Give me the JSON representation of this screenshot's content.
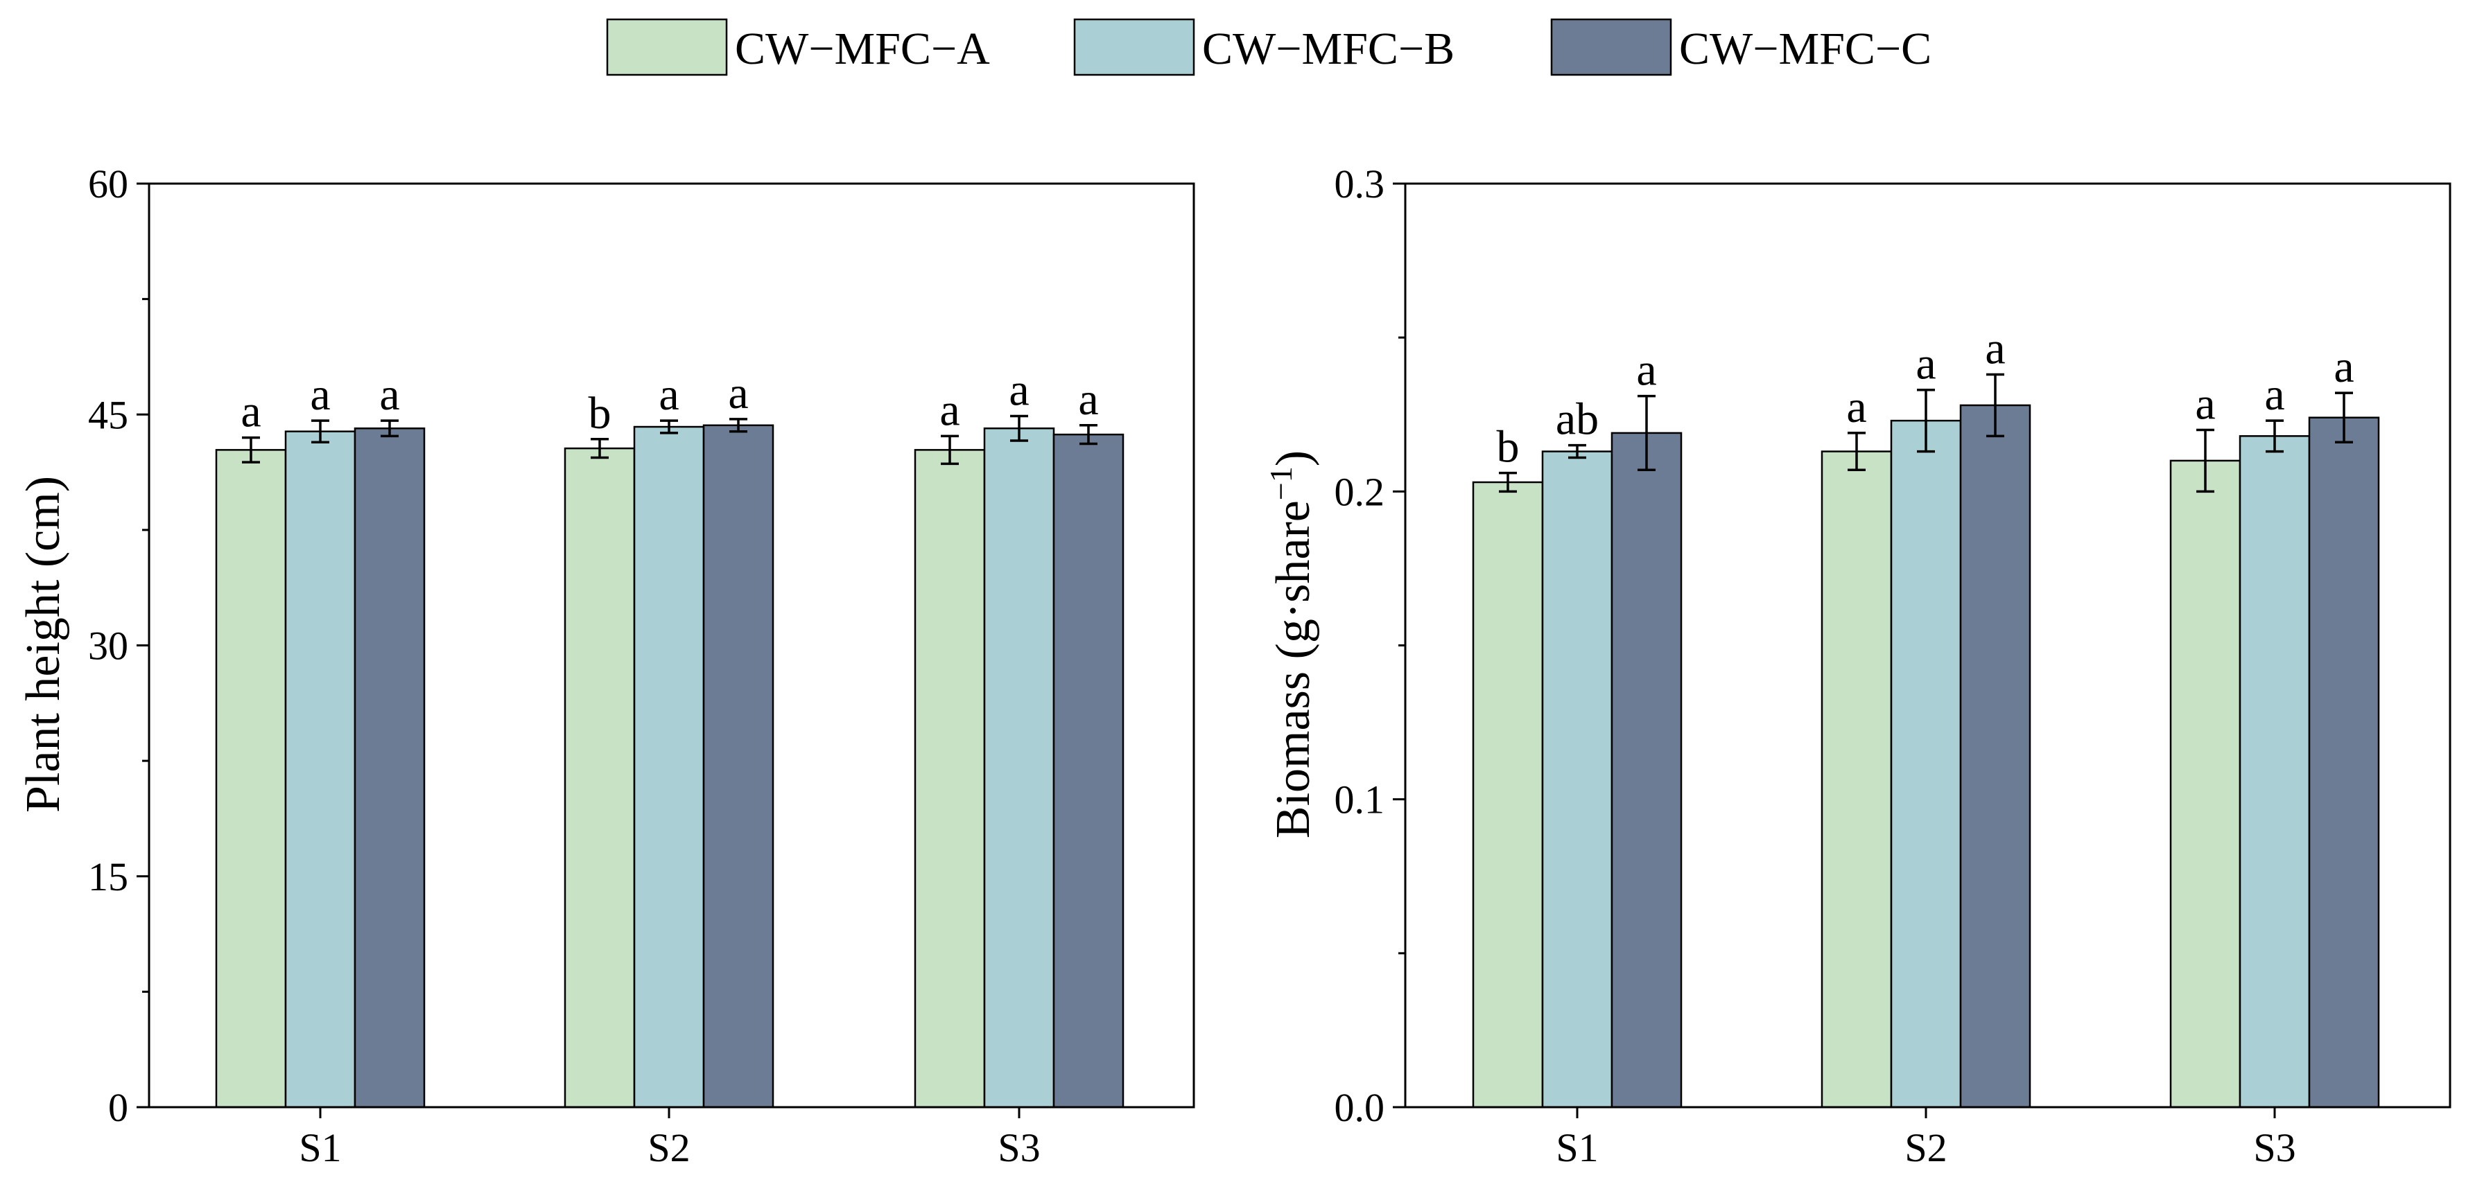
{
  "chart_data": {
    "type": "bar",
    "legend": {
      "placement": "top-center",
      "entries": [
        {
          "name": "CW−MFC−A",
          "color": "#c8e2c5"
        },
        {
          "name": "CW−MFC−B",
          "color": "#aad0d5"
        },
        {
          "name": "CW−MFC−C",
          "color": "#6b7c94"
        }
      ]
    },
    "panels": [
      {
        "id": "plant-height",
        "ylabel": "Plant height (cm)",
        "ylim": [
          0,
          60
        ],
        "yticks": [
          0,
          15,
          30,
          45,
          60
        ],
        "ytick_labels": [
          "0",
          "15",
          "30",
          "45",
          "60"
        ],
        "minor_step": 7.5,
        "categories": [
          "S1",
          "S2",
          "S3"
        ],
        "series": [
          {
            "name": "CW−MFC−A",
            "values": [
              42.7,
              42.8,
              42.7
            ],
            "errors": [
              0.8,
              0.6,
              0.9
            ],
            "labels": [
              "a",
              "b",
              "a"
            ]
          },
          {
            "name": "CW−MFC−B",
            "values": [
              43.9,
              44.2,
              44.1
            ],
            "errors": [
              0.7,
              0.4,
              0.8
            ],
            "labels": [
              "a",
              "a",
              "a"
            ]
          },
          {
            "name": "CW−MFC−C",
            "values": [
              44.1,
              44.3,
              43.7
            ],
            "errors": [
              0.5,
              0.4,
              0.6
            ],
            "labels": [
              "a",
              "a",
              "a"
            ]
          }
        ]
      },
      {
        "id": "biomass",
        "ylabel": "Biomass (g·share",
        "ylabel_sup": "−1",
        "ylabel_close": ")",
        "ylim": [
          0,
          0.3
        ],
        "yticks": [
          0,
          0.1,
          0.2,
          0.3
        ],
        "ytick_labels": [
          "0.0",
          "0.1",
          "0.2",
          "0.3"
        ],
        "minor_step": 0.05,
        "categories": [
          "S1",
          "S2",
          "S3"
        ],
        "series": [
          {
            "name": "CW−MFC−A",
            "values": [
              0.203,
              0.213,
              0.21
            ],
            "errors": [
              0.003,
              0.006,
              0.01
            ],
            "labels": [
              "b",
              "a",
              "a"
            ]
          },
          {
            "name": "CW−MFC−B",
            "values": [
              0.213,
              0.223,
              0.218
            ],
            "errors": [
              0.002,
              0.01,
              0.005
            ],
            "labels": [
              "ab",
              "a",
              "a"
            ]
          },
          {
            "name": "CW−MFC−C",
            "values": [
              0.219,
              0.228,
              0.224
            ],
            "errors": [
              0.012,
              0.01,
              0.008
            ],
            "labels": [
              "a",
              "a",
              "a"
            ]
          }
        ]
      }
    ]
  }
}
